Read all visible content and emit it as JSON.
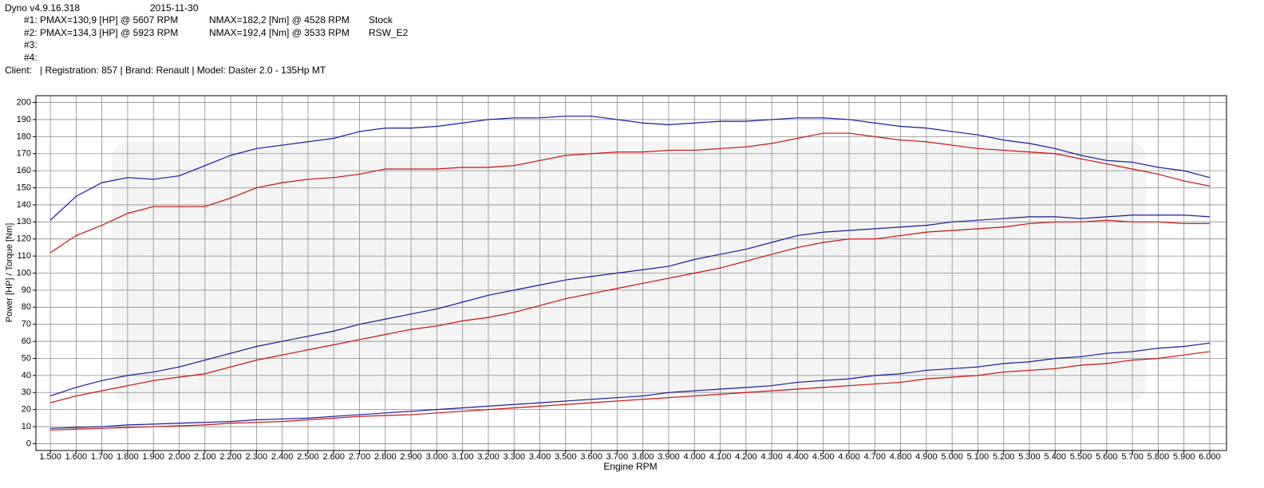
{
  "header": {
    "app": "Dyno v4.9.16.318",
    "date": "2015-11-30",
    "empty_runs": [
      "#3:",
      "#4:"
    ],
    "client": "Client:   | Registration: 857 | Brand: Renault | Model: Daster 2.0 - 135Hp MT"
  },
  "chart_data": {
    "type": "line",
    "x_label": "Engine RPM",
    "y_label": "Power [HP] / Torque [Nm]",
    "x": [
      1500,
      1600,
      1700,
      1800,
      1900,
      2000,
      2100,
      2200,
      2300,
      2400,
      2500,
      2600,
      2700,
      2800,
      2900,
      3000,
      3100,
      3200,
      3300,
      3400,
      3500,
      3600,
      3700,
      3800,
      3900,
      4000,
      4100,
      4200,
      4300,
      4400,
      4500,
      4600,
      4700,
      4800,
      4900,
      5000,
      5100,
      5200,
      5300,
      5400,
      5500,
      5600,
      5700,
      5800,
      5900,
      6000
    ],
    "xlim": [
      1444,
      6065
    ],
    "ylim": [
      -4,
      204
    ],
    "xticks": [
      {
        "value": 1500,
        "label": "1.500"
      },
      {
        "value": 1600,
        "label": "1.600"
      },
      {
        "value": 1700,
        "label": "1.700"
      },
      {
        "value": 1800,
        "label": "1.800"
      },
      {
        "value": 1900,
        "label": "1.900"
      },
      {
        "value": 2000,
        "label": "2.000"
      },
      {
        "value": 2100,
        "label": "2.100"
      },
      {
        "value": 2200,
        "label": "2.200"
      },
      {
        "value": 2300,
        "label": "2.300"
      },
      {
        "value": 2400,
        "label": "2.400"
      },
      {
        "value": 2500,
        "label": "2.500"
      },
      {
        "value": 2600,
        "label": "2.600"
      },
      {
        "value": 2700,
        "label": "2.700"
      },
      {
        "value": 2800,
        "label": "2.800"
      },
      {
        "value": 2900,
        "label": "2.900"
      },
      {
        "value": 3000,
        "label": "3.000"
      },
      {
        "value": 3100,
        "label": "3.100"
      },
      {
        "value": 3200,
        "label": "3.200"
      },
      {
        "value": 3300,
        "label": "3.300"
      },
      {
        "value": 3400,
        "label": "3.400"
      },
      {
        "value": 3500,
        "label": "3.500"
      },
      {
        "value": 3600,
        "label": "3.600"
      },
      {
        "value": 3700,
        "label": "3.700"
      },
      {
        "value": 3800,
        "label": "3.800"
      },
      {
        "value": 3900,
        "label": "3.900"
      },
      {
        "value": 4000,
        "label": "4.000"
      },
      {
        "value": 4100,
        "label": "4.100"
      },
      {
        "value": 4200,
        "label": "4.200"
      },
      {
        "value": 4300,
        "label": "4.300"
      },
      {
        "value": 4400,
        "label": "4.400"
      },
      {
        "value": 4500,
        "label": "4.500"
      },
      {
        "value": 4600,
        "label": "4.600"
      },
      {
        "value": 4700,
        "label": "4.700"
      },
      {
        "value": 4800,
        "label": "4.800"
      },
      {
        "value": 4900,
        "label": "4.900"
      },
      {
        "value": 5000,
        "label": "5.000"
      },
      {
        "value": 5100,
        "label": "5.100"
      },
      {
        "value": 5200,
        "label": "5.200"
      },
      {
        "value": 5300,
        "label": "5.300"
      },
      {
        "value": 5400,
        "label": "5.400"
      },
      {
        "value": 5500,
        "label": "5.500"
      },
      {
        "value": 5600,
        "label": "5.600"
      },
      {
        "value": 5700,
        "label": "5.700"
      },
      {
        "value": 5800,
        "label": "5.800"
      },
      {
        "value": 5900,
        "label": "5.900"
      },
      {
        "value": 6000,
        "label": "6.000"
      }
    ],
    "yticks": [
      0,
      10,
      20,
      30,
      40,
      50,
      60,
      70,
      80,
      90,
      100,
      110,
      120,
      130,
      140,
      150,
      160,
      170,
      180,
      190,
      200
    ],
    "grid": true,
    "series": [
      {
        "name": "Stock",
        "color": "#cc1010",
        "pmax": "#1: PMAX=130,9 [HP] @ 5607 RPM",
        "nmax": "NMAX=182,2 [Nm] @ 4528 RPM",
        "torque": [
          112,
          122,
          128,
          135,
          139,
          139,
          139,
          144,
          150,
          153,
          155,
          156,
          158,
          161,
          161,
          161,
          162,
          162,
          163,
          166,
          169,
          170,
          171,
          171,
          172,
          172,
          173,
          174,
          176,
          179,
          182,
          182,
          180,
          178,
          177,
          175,
          173,
          172,
          171,
          170,
          167,
          164,
          161,
          158,
          154,
          151
        ],
        "power": [
          24,
          28,
          31,
          34,
          37,
          39,
          41,
          45,
          49,
          52,
          55,
          58,
          61,
          64,
          67,
          69,
          72,
          74,
          77,
          81,
          85,
          88,
          91,
          94,
          97,
          100,
          103,
          107,
          111,
          115,
          118,
          120,
          120,
          122,
          124,
          125,
          126,
          127,
          129,
          130,
          130,
          131,
          130,
          130,
          129,
          129
        ],
        "loss": [
          8,
          8.5,
          9,
          9.5,
          10,
          10.5,
          11,
          12,
          12.5,
          13,
          14,
          15,
          16,
          16.5,
          17,
          18,
          19,
          20,
          21,
          22,
          23,
          24,
          25,
          26,
          27,
          28,
          29,
          30,
          31,
          32,
          33,
          34,
          35,
          36,
          38,
          39,
          40,
          42,
          43,
          44,
          46,
          47,
          49,
          50,
          52,
          54
        ]
      },
      {
        "name": "RSW_E2",
        "color": "#1a1aa0",
        "pmax": "#2: PMAX=134,3 [HP] @ 5923 RPM",
        "nmax": "NMAX=192,4 [Nm] @ 3533 RPM",
        "torque": [
          131,
          145,
          153,
          156,
          155,
          157,
          163,
          169,
          173,
          175,
          177,
          179,
          183,
          185,
          185,
          186,
          188,
          190,
          191,
          191,
          192,
          192,
          190,
          188,
          187,
          188,
          189,
          189,
          190,
          191,
          191,
          190,
          188,
          186,
          185,
          183,
          181,
          178,
          176,
          173,
          169,
          166,
          165,
          162,
          160,
          156
        ],
        "power": [
          28,
          33,
          37,
          40,
          42,
          45,
          49,
          53,
          57,
          60,
          63,
          66,
          70,
          73,
          76,
          79,
          83,
          87,
          90,
          93,
          96,
          98,
          100,
          102,
          104,
          108,
          111,
          114,
          118,
          122,
          124,
          125,
          126,
          127,
          128,
          130,
          131,
          132,
          133,
          133,
          132,
          133,
          134,
          134,
          134,
          133
        ],
        "loss": [
          9,
          9.5,
          10,
          11,
          11.5,
          12,
          12.5,
          13,
          14,
          14.5,
          15,
          16,
          17,
          18,
          19,
          20,
          21,
          22,
          23,
          24,
          25,
          26,
          27,
          28,
          30,
          31,
          32,
          33,
          34,
          36,
          37,
          38,
          40,
          41,
          43,
          44,
          45,
          47,
          48,
          50,
          51,
          53,
          54,
          56,
          57,
          59
        ]
      }
    ]
  }
}
